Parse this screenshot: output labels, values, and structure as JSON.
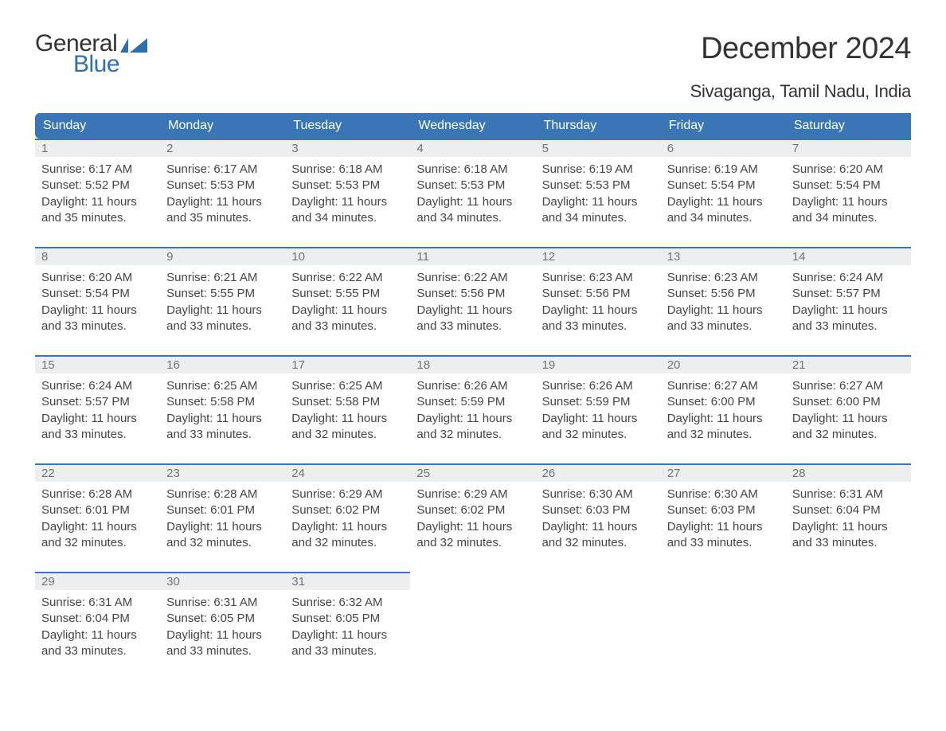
{
  "logo": {
    "word1": "General",
    "word2": "Blue",
    "brand_color": "#2f6fae",
    "text_color": "#333333"
  },
  "title": "December 2024",
  "subtitle": "Sivaganga, Tamil Nadu, India",
  "colors": {
    "header_bg": "#3a76b5",
    "header_text": "#ffffff",
    "daynum_bg": "#eceeef",
    "daynum_border": "#3a76b5",
    "daynum_text": "#6e7378",
    "body_text": "#444444",
    "background": "#ffffff"
  },
  "day_headers": [
    "Sunday",
    "Monday",
    "Tuesday",
    "Wednesday",
    "Thursday",
    "Friday",
    "Saturday"
  ],
  "weeks": [
    [
      {
        "num": "1",
        "sunrise": "Sunrise: 6:17 AM",
        "sunset": "Sunset: 5:52 PM",
        "daylight1": "Daylight: 11 hours",
        "daylight2": "and 35 minutes."
      },
      {
        "num": "2",
        "sunrise": "Sunrise: 6:17 AM",
        "sunset": "Sunset: 5:53 PM",
        "daylight1": "Daylight: 11 hours",
        "daylight2": "and 35 minutes."
      },
      {
        "num": "3",
        "sunrise": "Sunrise: 6:18 AM",
        "sunset": "Sunset: 5:53 PM",
        "daylight1": "Daylight: 11 hours",
        "daylight2": "and 34 minutes."
      },
      {
        "num": "4",
        "sunrise": "Sunrise: 6:18 AM",
        "sunset": "Sunset: 5:53 PM",
        "daylight1": "Daylight: 11 hours",
        "daylight2": "and 34 minutes."
      },
      {
        "num": "5",
        "sunrise": "Sunrise: 6:19 AM",
        "sunset": "Sunset: 5:53 PM",
        "daylight1": "Daylight: 11 hours",
        "daylight2": "and 34 minutes."
      },
      {
        "num": "6",
        "sunrise": "Sunrise: 6:19 AM",
        "sunset": "Sunset: 5:54 PM",
        "daylight1": "Daylight: 11 hours",
        "daylight2": "and 34 minutes."
      },
      {
        "num": "7",
        "sunrise": "Sunrise: 6:20 AM",
        "sunset": "Sunset: 5:54 PM",
        "daylight1": "Daylight: 11 hours",
        "daylight2": "and 34 minutes."
      }
    ],
    [
      {
        "num": "8",
        "sunrise": "Sunrise: 6:20 AM",
        "sunset": "Sunset: 5:54 PM",
        "daylight1": "Daylight: 11 hours",
        "daylight2": "and 33 minutes."
      },
      {
        "num": "9",
        "sunrise": "Sunrise: 6:21 AM",
        "sunset": "Sunset: 5:55 PM",
        "daylight1": "Daylight: 11 hours",
        "daylight2": "and 33 minutes."
      },
      {
        "num": "10",
        "sunrise": "Sunrise: 6:22 AM",
        "sunset": "Sunset: 5:55 PM",
        "daylight1": "Daylight: 11 hours",
        "daylight2": "and 33 minutes."
      },
      {
        "num": "11",
        "sunrise": "Sunrise: 6:22 AM",
        "sunset": "Sunset: 5:56 PM",
        "daylight1": "Daylight: 11 hours",
        "daylight2": "and 33 minutes."
      },
      {
        "num": "12",
        "sunrise": "Sunrise: 6:23 AM",
        "sunset": "Sunset: 5:56 PM",
        "daylight1": "Daylight: 11 hours",
        "daylight2": "and 33 minutes."
      },
      {
        "num": "13",
        "sunrise": "Sunrise: 6:23 AM",
        "sunset": "Sunset: 5:56 PM",
        "daylight1": "Daylight: 11 hours",
        "daylight2": "and 33 minutes."
      },
      {
        "num": "14",
        "sunrise": "Sunrise: 6:24 AM",
        "sunset": "Sunset: 5:57 PM",
        "daylight1": "Daylight: 11 hours",
        "daylight2": "and 33 minutes."
      }
    ],
    [
      {
        "num": "15",
        "sunrise": "Sunrise: 6:24 AM",
        "sunset": "Sunset: 5:57 PM",
        "daylight1": "Daylight: 11 hours",
        "daylight2": "and 33 minutes."
      },
      {
        "num": "16",
        "sunrise": "Sunrise: 6:25 AM",
        "sunset": "Sunset: 5:58 PM",
        "daylight1": "Daylight: 11 hours",
        "daylight2": "and 33 minutes."
      },
      {
        "num": "17",
        "sunrise": "Sunrise: 6:25 AM",
        "sunset": "Sunset: 5:58 PM",
        "daylight1": "Daylight: 11 hours",
        "daylight2": "and 32 minutes."
      },
      {
        "num": "18",
        "sunrise": "Sunrise: 6:26 AM",
        "sunset": "Sunset: 5:59 PM",
        "daylight1": "Daylight: 11 hours",
        "daylight2": "and 32 minutes."
      },
      {
        "num": "19",
        "sunrise": "Sunrise: 6:26 AM",
        "sunset": "Sunset: 5:59 PM",
        "daylight1": "Daylight: 11 hours",
        "daylight2": "and 32 minutes."
      },
      {
        "num": "20",
        "sunrise": "Sunrise: 6:27 AM",
        "sunset": "Sunset: 6:00 PM",
        "daylight1": "Daylight: 11 hours",
        "daylight2": "and 32 minutes."
      },
      {
        "num": "21",
        "sunrise": "Sunrise: 6:27 AM",
        "sunset": "Sunset: 6:00 PM",
        "daylight1": "Daylight: 11 hours",
        "daylight2": "and 32 minutes."
      }
    ],
    [
      {
        "num": "22",
        "sunrise": "Sunrise: 6:28 AM",
        "sunset": "Sunset: 6:01 PM",
        "daylight1": "Daylight: 11 hours",
        "daylight2": "and 32 minutes."
      },
      {
        "num": "23",
        "sunrise": "Sunrise: 6:28 AM",
        "sunset": "Sunset: 6:01 PM",
        "daylight1": "Daylight: 11 hours",
        "daylight2": "and 32 minutes."
      },
      {
        "num": "24",
        "sunrise": "Sunrise: 6:29 AM",
        "sunset": "Sunset: 6:02 PM",
        "daylight1": "Daylight: 11 hours",
        "daylight2": "and 32 minutes."
      },
      {
        "num": "25",
        "sunrise": "Sunrise: 6:29 AM",
        "sunset": "Sunset: 6:02 PM",
        "daylight1": "Daylight: 11 hours",
        "daylight2": "and 32 minutes."
      },
      {
        "num": "26",
        "sunrise": "Sunrise: 6:30 AM",
        "sunset": "Sunset: 6:03 PM",
        "daylight1": "Daylight: 11 hours",
        "daylight2": "and 32 minutes."
      },
      {
        "num": "27",
        "sunrise": "Sunrise: 6:30 AM",
        "sunset": "Sunset: 6:03 PM",
        "daylight1": "Daylight: 11 hours",
        "daylight2": "and 33 minutes."
      },
      {
        "num": "28",
        "sunrise": "Sunrise: 6:31 AM",
        "sunset": "Sunset: 6:04 PM",
        "daylight1": "Daylight: 11 hours",
        "daylight2": "and 33 minutes."
      }
    ],
    [
      {
        "num": "29",
        "sunrise": "Sunrise: 6:31 AM",
        "sunset": "Sunset: 6:04 PM",
        "daylight1": "Daylight: 11 hours",
        "daylight2": "and 33 minutes."
      },
      {
        "num": "30",
        "sunrise": "Sunrise: 6:31 AM",
        "sunset": "Sunset: 6:05 PM",
        "daylight1": "Daylight: 11 hours",
        "daylight2": "and 33 minutes."
      },
      {
        "num": "31",
        "sunrise": "Sunrise: 6:32 AM",
        "sunset": "Sunset: 6:05 PM",
        "daylight1": "Daylight: 11 hours",
        "daylight2": "and 33 minutes."
      },
      null,
      null,
      null,
      null
    ]
  ]
}
